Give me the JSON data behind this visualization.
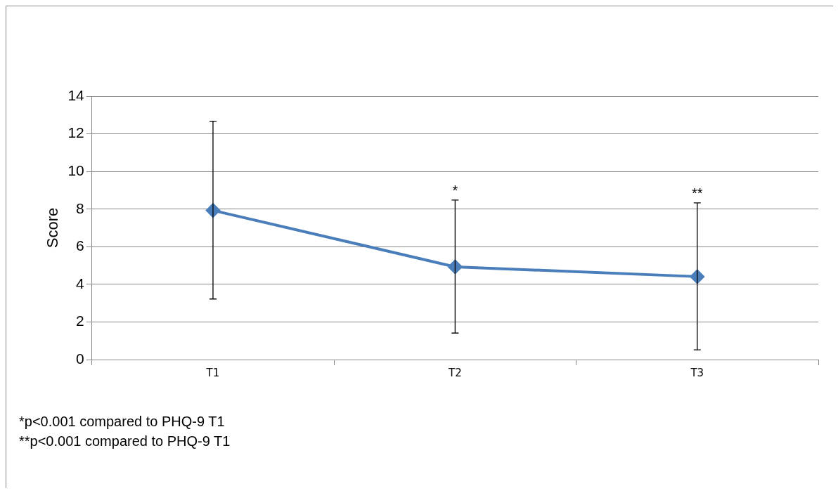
{
  "chart_data": {
    "type": "line",
    "ylabel": "Score",
    "categories": [
      "T1",
      "T2",
      "T3"
    ],
    "series": [
      {
        "color": "#4a7ebb",
        "values": [
          7.93,
          4.93,
          4.41
        ],
        "errors": [
          [
            3.22,
            12.67
          ],
          [
            1.41,
            8.48
          ],
          [
            0.52,
            8.33
          ]
        ]
      }
    ],
    "ylim": [
      0,
      14
    ],
    "yticks": [
      0,
      2,
      4,
      6,
      8,
      10,
      12,
      14
    ],
    "grid": "y",
    "legend": false,
    "marker": "diamond",
    "line_style": "solid",
    "annotations": [
      "*",
      "**",
      "*p<0.001 compared to PHQ-9 T1",
      "**p<0.001 compared to PHQ-9 T1"
    ]
  }
}
